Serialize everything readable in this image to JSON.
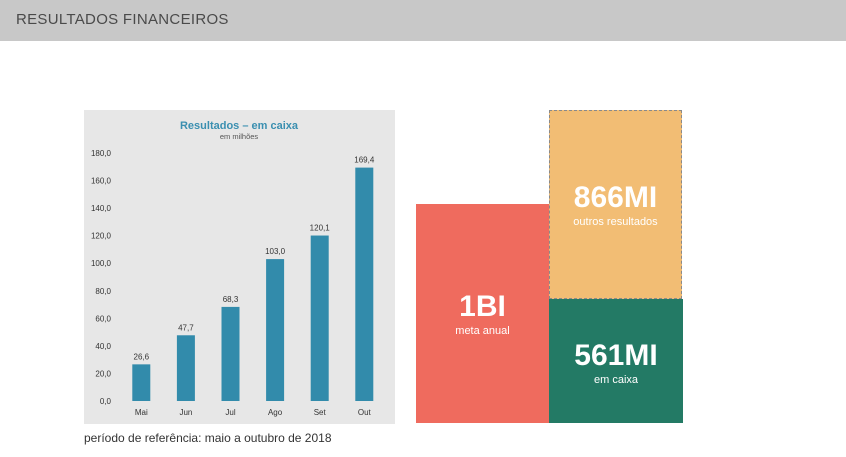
{
  "header": {
    "title": "RESULTADOS FINANCEIROS"
  },
  "colors": {
    "header_bg": "#c8c8c8",
    "chart_bg": "#e7e7e7",
    "bar": "#328bab",
    "chart_title": "#3a8fb0",
    "goal_block": "#ef6b5e",
    "other_block": "#f2bd74",
    "cash_block": "#237a65"
  },
  "chart_data": {
    "type": "bar",
    "title": "Resultados – em caixa",
    "subtitle": "em milhões",
    "categories": [
      "Mai",
      "Jun",
      "Jul",
      "Ago",
      "Set",
      "Out"
    ],
    "values": [
      26.6,
      47.7,
      68.3,
      103.0,
      120.1,
      169.4
    ],
    "value_labels": [
      "26,6",
      "47,7",
      "68,3",
      "103,0",
      "120,1",
      "169,4"
    ],
    "y_ticks": [
      "0,0",
      "20,0",
      "40,0",
      "60,0",
      "80,0",
      "100,0",
      "120,0",
      "140,0",
      "160,0",
      "180,0"
    ],
    "ylim": [
      0,
      180
    ],
    "xlabel": "",
    "ylabel": "",
    "grid": false,
    "legend": "none"
  },
  "reference": "período de referência: maio a outubro de 2018",
  "blocks": {
    "goal": {
      "value": "1BI",
      "label": "meta anual"
    },
    "other": {
      "value": "866MI",
      "label": "outros resultados"
    },
    "cash": {
      "value": "561MI",
      "label": "em caixa"
    }
  }
}
